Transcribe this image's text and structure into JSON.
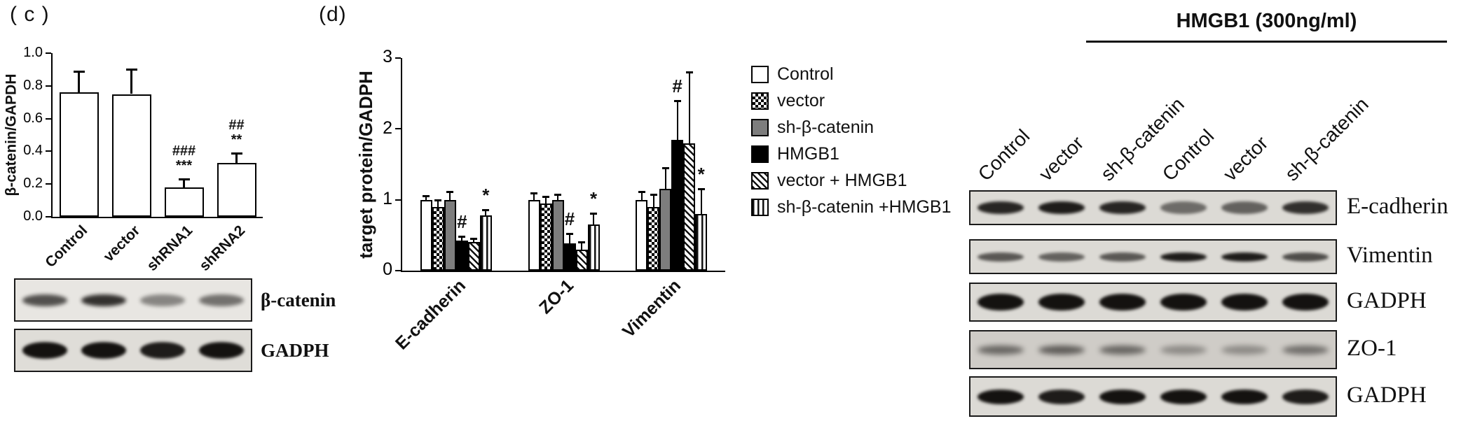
{
  "figure": {
    "panel_c_label": "( c )",
    "panel_d_label": "(d)"
  },
  "chart_data": [
    {
      "type": "bar",
      "panel": "c",
      "title": "",
      "xlabel": "",
      "ylabel": "β-catenin/GAPDH",
      "categories": [
        "Control",
        "vector",
        "shRNA1",
        "shRNA2"
      ],
      "values": [
        0.76,
        0.75,
        0.18,
        0.33
      ],
      "errors": [
        0.13,
        0.15,
        0.05,
        0.06
      ],
      "ylim": [
        0,
        1.0
      ],
      "yticks": [
        "0.0",
        "0.2",
        "0.4",
        "0.6",
        "0.8",
        "1.0"
      ],
      "grid": false,
      "bar_fill": "white",
      "annotations": [
        {
          "category": "shRNA1",
          "lines": [
            "###",
            "***"
          ]
        },
        {
          "category": "shRNA2",
          "lines": [
            "##",
            "**"
          ]
        }
      ]
    },
    {
      "type": "bar",
      "panel": "d",
      "title": "",
      "xlabel": "",
      "ylabel": "target protein/GADPH",
      "categories": [
        "E-cadherin",
        "ZO-1",
        "Vimentin"
      ],
      "ylim": [
        0,
        3
      ],
      "yticks": [
        "0",
        "1",
        "2",
        "3"
      ],
      "grid": false,
      "legend_position": "right",
      "series": [
        {
          "name": "Control",
          "pattern": "white",
          "values": [
            1.0,
            1.0,
            1.0
          ],
          "errors": [
            0.06,
            0.1,
            0.12
          ]
        },
        {
          "name": "vector",
          "pattern": "checker",
          "values": [
            0.9,
            0.95,
            0.9
          ],
          "errors": [
            0.1,
            0.1,
            0.18
          ]
        },
        {
          "name": "sh-β-catenin",
          "pattern": "gray",
          "values": [
            1.0,
            1.0,
            1.15
          ],
          "errors": [
            0.12,
            0.08,
            0.3
          ]
        },
        {
          "name": "HMGB1",
          "pattern": "black",
          "values": [
            0.42,
            0.38,
            1.85
          ],
          "errors": [
            0.06,
            0.14,
            0.55
          ]
        },
        {
          "name": "vector + HMGB1",
          "pattern": "diag",
          "values": [
            0.4,
            0.3,
            1.8
          ],
          "errors": [
            0.05,
            0.1,
            1.0
          ]
        },
        {
          "name": "sh-β-catenin +HMGB1",
          "pattern": "vert",
          "values": [
            0.78,
            0.65,
            0.8
          ],
          "errors": [
            0.08,
            0.16,
            0.35
          ]
        }
      ],
      "annotations": [
        {
          "category": "E-cadherin",
          "series": "HMGB1",
          "text": "#"
        },
        {
          "category": "E-cadherin",
          "series": "sh-β-catenin +HMGB1",
          "text": "*"
        },
        {
          "category": "ZO-1",
          "series": "HMGB1",
          "text": "#"
        },
        {
          "category": "ZO-1",
          "series": "sh-β-catenin +HMGB1",
          "text": "*"
        },
        {
          "category": "Vimentin",
          "series": "HMGB1",
          "text": "#"
        },
        {
          "category": "Vimentin",
          "series": "sh-β-catenin +HMGB1",
          "text": "*"
        }
      ]
    }
  ],
  "panel_c_blots": [
    {
      "label": "β-catenin",
      "lanes": [
        0.7,
        0.85,
        0.45,
        0.55
      ]
    },
    {
      "label": "GADPH",
      "lanes": [
        1,
        1,
        0.95,
        1
      ]
    }
  ],
  "panel_d_wb": {
    "header": "HMGB1 (300ng/ml)",
    "col_labels": [
      "Control",
      "vector",
      "sh-β-catenin",
      "Control",
      "vector",
      "sh-β-catenin"
    ],
    "rows": [
      {
        "label": "E-cadherin",
        "lanes": [
          0.9,
          0.95,
          0.9,
          0.55,
          0.6,
          0.85
        ]
      },
      {
        "label": "Vimentin",
        "lanes": [
          0.65,
          0.6,
          0.65,
          0.95,
          0.95,
          0.7
        ]
      },
      {
        "label": "GADPH",
        "lanes": [
          1,
          1,
          1,
          1,
          1,
          1
        ]
      },
      {
        "label": "ZO-1",
        "lanes": [
          0.55,
          0.6,
          0.55,
          0.35,
          0.35,
          0.5
        ]
      },
      {
        "label": "GADPH",
        "lanes": [
          1,
          0.95,
          1,
          1,
          1,
          0.95
        ]
      }
    ]
  }
}
